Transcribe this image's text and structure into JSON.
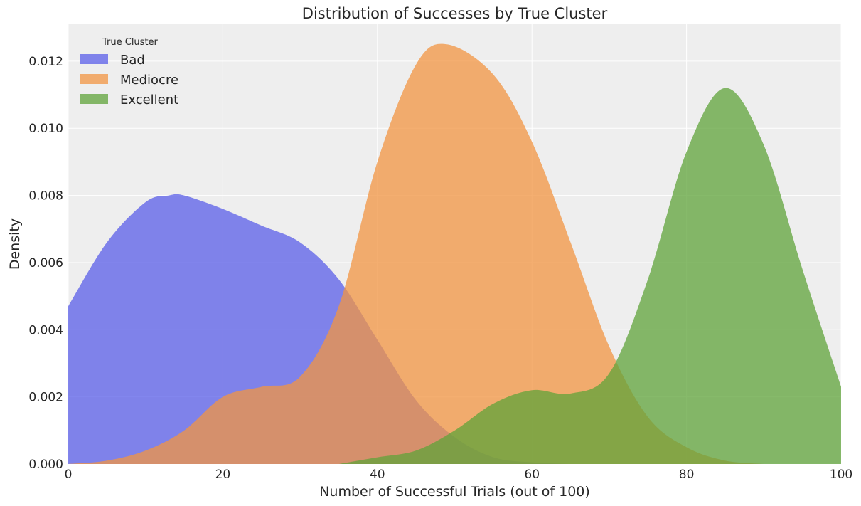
{
  "chart_data": {
    "type": "area",
    "title": "Distribution of Successes by True Cluster",
    "xlabel": "Number of Successful Trials (out of 100)",
    "ylabel": "Density",
    "xlim": [
      0,
      100
    ],
    "ylim": [
      0,
      0.0131
    ],
    "xticks": [
      0,
      20,
      40,
      60,
      80,
      100
    ],
    "xtick_labels": [
      "0",
      "20",
      "40",
      "60",
      "80",
      "100"
    ],
    "yticks": [
      0,
      0.002,
      0.004,
      0.006,
      0.008,
      0.01,
      0.012
    ],
    "ytick_labels": [
      "0.000",
      "0.002",
      "0.004",
      "0.006",
      "0.008",
      "0.010",
      "0.012"
    ],
    "grid": true,
    "legend": {
      "title": "True Cluster",
      "placement": "top-left"
    },
    "series": [
      {
        "name": "Bad",
        "color": "#5a5ee8",
        "x": [
          0,
          5,
          10,
          13,
          15,
          20,
          25,
          30,
          35,
          40,
          45,
          50,
          55,
          60,
          65
        ],
        "y": [
          0.0047,
          0.0066,
          0.0078,
          0.008,
          0.008,
          0.0076,
          0.0071,
          0.0066,
          0.0055,
          0.0037,
          0.0019,
          0.0008,
          0.0002,
          5e-05,
          0
        ]
      },
      {
        "name": "Mediocre",
        "color": "#f29442",
        "x": [
          0,
          5,
          10,
          15,
          20,
          25,
          30,
          35,
          40,
          45,
          49,
          55,
          60,
          65,
          70,
          75,
          80,
          85,
          90
        ],
        "y": [
          0,
          0.0001,
          0.0004,
          0.001,
          0.002,
          0.0023,
          0.0026,
          0.0047,
          0.009,
          0.0119,
          0.0125,
          0.0116,
          0.0096,
          0.0066,
          0.0035,
          0.0014,
          0.0005,
          0.0001,
          0
        ]
      },
      {
        "name": "Excellent",
        "color": "#5fa33a",
        "x": [
          35,
          40,
          45,
          50,
          55,
          60,
          65,
          70,
          75,
          80,
          85,
          90,
          95,
          100
        ],
        "y": [
          0,
          0.0002,
          0.0004,
          0.001,
          0.0018,
          0.0022,
          0.0021,
          0.0027,
          0.0055,
          0.0093,
          0.0112,
          0.0095,
          0.0058,
          0.0023
        ]
      }
    ]
  }
}
